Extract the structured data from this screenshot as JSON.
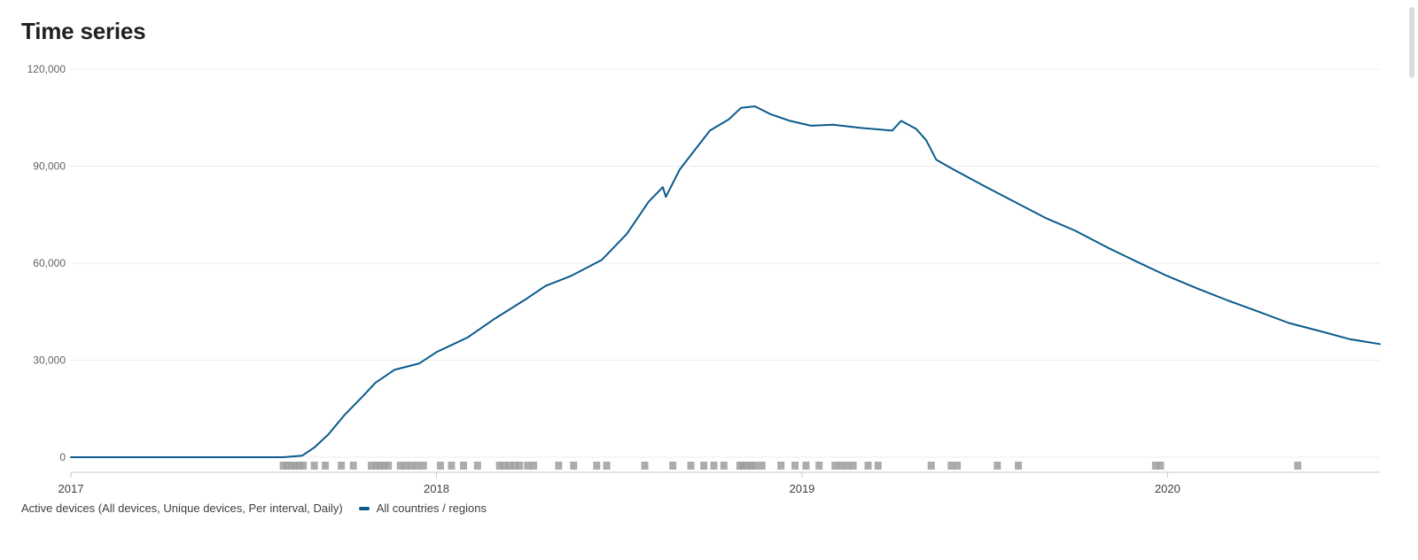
{
  "page": {
    "title": "Time series"
  },
  "legend": {
    "metric_label": "Active devices (All devices, Unique devices, Per interval, Daily)",
    "series_label": "All countries / regions"
  },
  "colors": {
    "series": "#0b5a8c",
    "grid": "#ececec",
    "axis": "#c8c8c8",
    "marker": "#9e9e9e",
    "marker_dark": "#6e6e6e"
  },
  "chart_data": {
    "type": "line",
    "title": "",
    "xlabel": "",
    "ylabel": "",
    "xlim": [
      "2017-01-01",
      "2020-07-31"
    ],
    "ylim": [
      0,
      120000
    ],
    "y_ticks": [
      0,
      30000,
      60000,
      90000,
      120000
    ],
    "y_tick_labels": [
      "0",
      "30,000",
      "60,000",
      "90,000",
      "120,000"
    ],
    "x_ticks": [
      "2017-01-01",
      "2018-01-01",
      "2019-01-01",
      "2020-01-01"
    ],
    "x_tick_labels": [
      "2017",
      "2018",
      "2019",
      "2020"
    ],
    "grid": true,
    "legend_position": "bottom-left",
    "series": [
      {
        "name": "All countries / regions",
        "points": [
          [
            "2017-01-01",
            0
          ],
          [
            "2017-08-01",
            0
          ],
          [
            "2017-08-20",
            500
          ],
          [
            "2017-09-01",
            3000
          ],
          [
            "2017-09-15",
            7000
          ],
          [
            "2017-10-01",
            13000
          ],
          [
            "2017-10-20",
            19000
          ],
          [
            "2017-11-01",
            23000
          ],
          [
            "2017-11-20",
            27000
          ],
          [
            "2017-12-15",
            29000
          ],
          [
            "2018-01-01",
            32500
          ],
          [
            "2018-02-01",
            37000
          ],
          [
            "2018-03-01",
            43000
          ],
          [
            "2018-04-01",
            49000
          ],
          [
            "2018-04-20",
            53000
          ],
          [
            "2018-05-15",
            56000
          ],
          [
            "2018-06-15",
            61000
          ],
          [
            "2018-07-10",
            69000
          ],
          [
            "2018-08-01",
            79000
          ],
          [
            "2018-08-15",
            83500
          ],
          [
            "2018-08-18",
            80500
          ],
          [
            "2018-09-01",
            89000
          ],
          [
            "2018-10-01",
            101000
          ],
          [
            "2018-10-20",
            104500
          ],
          [
            "2018-11-01",
            108000
          ],
          [
            "2018-11-15",
            108500
          ],
          [
            "2018-12-01",
            106000
          ],
          [
            "2018-12-20",
            104000
          ],
          [
            "2019-01-10",
            102500
          ],
          [
            "2019-02-01",
            102800
          ],
          [
            "2019-03-01",
            101800
          ],
          [
            "2019-04-01",
            101000
          ],
          [
            "2019-04-10",
            104000
          ],
          [
            "2019-04-25",
            101500
          ],
          [
            "2019-05-05",
            98000
          ],
          [
            "2019-05-15",
            92000
          ],
          [
            "2019-06-01",
            89000
          ],
          [
            "2019-07-01",
            84000
          ],
          [
            "2019-08-01",
            79000
          ],
          [
            "2019-09-01",
            74000
          ],
          [
            "2019-10-01",
            70000
          ],
          [
            "2019-11-01",
            65000
          ],
          [
            "2019-12-01",
            60500
          ],
          [
            "2020-01-01",
            56000
          ],
          [
            "2020-02-01",
            52000
          ],
          [
            "2020-03-01",
            48500
          ],
          [
            "2020-04-01",
            45000
          ],
          [
            "2020-05-01",
            41500
          ],
          [
            "2020-06-01",
            39000
          ],
          [
            "2020-07-01",
            36500
          ],
          [
            "2020-07-31",
            35000
          ]
        ]
      }
    ],
    "annotation_markers": [
      "2017-08-01",
      "2017-08-05",
      "2017-08-09",
      "2017-08-13",
      "2017-08-17",
      "2017-08-21",
      "2017-09-01",
      "2017-09-12",
      "2017-09-28",
      "2017-10-10",
      "2017-10-28",
      "2017-11-02",
      "2017-11-06",
      "2017-11-10",
      "2017-11-14",
      "2017-11-26",
      "2017-12-01",
      "2017-12-07",
      "2017-12-13",
      "2017-12-19",
      "2018-01-05",
      "2018-01-16",
      "2018-01-28",
      "2018-02-11",
      "2018-03-05",
      "2018-03-10",
      "2018-03-15",
      "2018-03-20",
      "2018-03-25",
      "2018-04-02",
      "2018-04-08",
      "2018-05-03",
      "2018-05-18",
      "2018-06-10",
      "2018-06-20",
      "2018-07-28",
      "2018-08-25",
      "2018-09-12",
      "2018-09-25",
      "2018-10-05",
      "2018-10-15",
      "2018-10-31",
      "2018-11-03",
      "2018-11-07",
      "2018-11-11",
      "2018-11-15",
      "2018-11-22",
      "2018-12-11",
      "2018-12-25",
      "2019-01-05",
      "2019-01-18",
      "2019-02-03",
      "2019-02-09",
      "2019-02-15",
      "2019-02-21",
      "2019-03-08",
      "2019-03-18",
      "2019-05-10",
      "2019-05-30",
      "2019-06-05",
      "2019-07-15",
      "2019-08-05",
      "2019-12-20",
      "2019-12-25",
      "2020-05-10"
    ]
  }
}
